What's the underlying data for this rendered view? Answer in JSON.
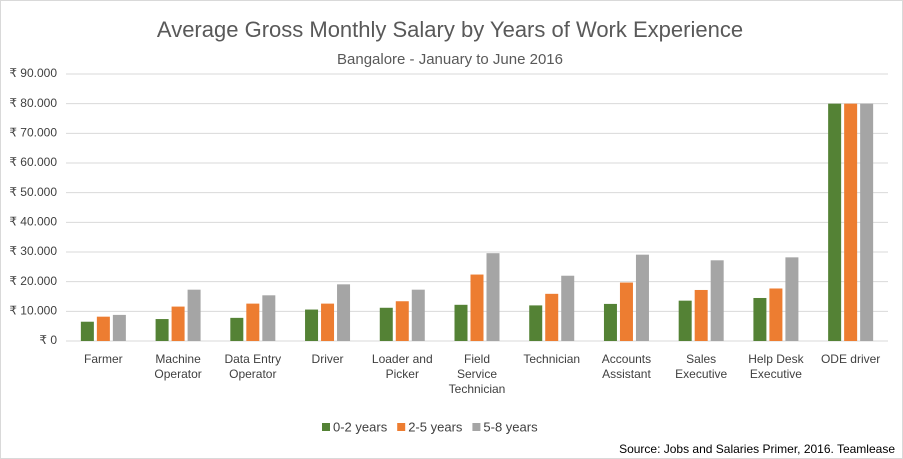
{
  "chart_data": {
    "type": "bar",
    "title": "Average Gross Monthly Salary by Years of Work Experience",
    "subtitle": "Bangalore - January to June 2016",
    "source": "Source: Jobs and Salaries Primer, 2016. Teamlease",
    "categories": [
      [
        "Farmer"
      ],
      [
        "Machine",
        "Operator"
      ],
      [
        "Data Entry",
        "Operator"
      ],
      [
        "Driver"
      ],
      [
        "Loader and",
        "Picker"
      ],
      [
        "Field",
        "Service",
        "Technician"
      ],
      [
        "Technician"
      ],
      [
        "Accounts",
        "Assistant"
      ],
      [
        "Sales",
        "Executive"
      ],
      [
        "Help Desk",
        "Executive"
      ],
      [
        "ODE driver"
      ]
    ],
    "series": [
      {
        "name": "0-2 years",
        "color": "#548235",
        "values": [
          6500,
          7400,
          7800,
          10600,
          11200,
          12200,
          12000,
          12500,
          13600,
          14500,
          80000
        ]
      },
      {
        "name": "2-5 years",
        "color": "#ed7d31",
        "values": [
          8200,
          11600,
          12600,
          12600,
          13400,
          22400,
          15900,
          19700,
          17200,
          17700,
          80000
        ]
      },
      {
        "name": "5-8 years",
        "color": "#a5a5a5",
        "values": [
          8800,
          17300,
          15400,
          19100,
          17300,
          29600,
          22000,
          29100,
          27200,
          28200,
          80000
        ]
      }
    ],
    "ylim": [
      0,
      90000
    ],
    "yticks": [
      {
        "value": 0,
        "label": "₹ 0"
      },
      {
        "value": 10000,
        "label": "₹ 10.000"
      },
      {
        "value": 20000,
        "label": "₹ 20.000"
      },
      {
        "value": 30000,
        "label": "₹ 30.000"
      },
      {
        "value": 40000,
        "label": "₹ 40.000"
      },
      {
        "value": 50000,
        "label": "₹ 50.000"
      },
      {
        "value": 60000,
        "label": "₹ 60.000"
      },
      {
        "value": 70000,
        "label": "₹ 70.000"
      },
      {
        "value": 80000,
        "label": "₹ 80.000"
      },
      {
        "value": 90000,
        "label": "₹ 90.000"
      }
    ],
    "grid": true,
    "legend": "bottom"
  }
}
